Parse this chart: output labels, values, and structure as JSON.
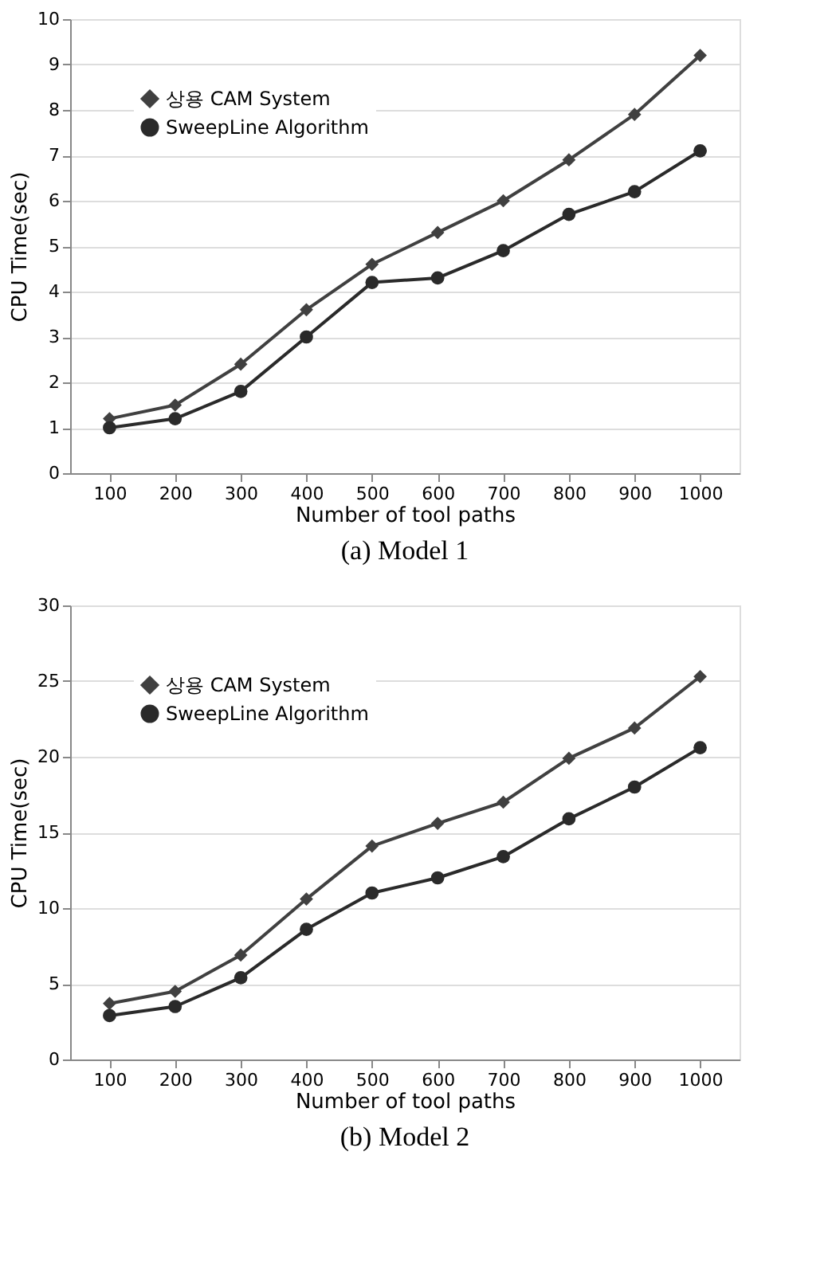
{
  "chart_data": [
    {
      "type": "line",
      "title": "(a) Model 1",
      "xlabel": "Number of tool paths",
      "ylabel": "CPU Time(sec)",
      "categories": [
        "100",
        "200",
        "300",
        "400",
        "500",
        "600",
        "700",
        "800",
        "900",
        "1000"
      ],
      "ylim": [
        0,
        10
      ],
      "yticks": [
        0,
        1,
        2,
        3,
        4,
        5,
        6,
        7,
        8,
        9,
        10
      ],
      "grid": "y",
      "legend": "top left",
      "series": [
        {
          "name": "상용 CAM System",
          "color": "#404040",
          "marker": "diamond",
          "values": [
            1.2,
            1.5,
            2.4,
            3.6,
            4.6,
            5.3,
            6.0,
            6.9,
            7.9,
            9.2
          ]
        },
        {
          "name": "SweepLine Algorithm",
          "color": "#2a2a2a",
          "marker": "circle",
          "values": [
            1.0,
            1.2,
            1.8,
            3.0,
            4.2,
            4.3,
            4.9,
            5.7,
            6.2,
            7.1
          ]
        }
      ]
    },
    {
      "type": "line",
      "title": "(b) Model 2",
      "xlabel": "Number of tool paths",
      "ylabel": "CPU Time(sec)",
      "categories": [
        "100",
        "200",
        "300",
        "400",
        "500",
        "600",
        "700",
        "800",
        "900",
        "1000"
      ],
      "ylim": [
        0,
        30
      ],
      "yticks": [
        0,
        5,
        10,
        15,
        20,
        25,
        30
      ],
      "grid": "y",
      "legend": "top left",
      "series": [
        {
          "name": "상용 CAM System",
          "color": "#404040",
          "marker": "diamond",
          "values": [
            3.7,
            4.5,
            6.9,
            10.6,
            14.1,
            15.6,
            17.0,
            19.9,
            21.9,
            25.3
          ]
        },
        {
          "name": "SweepLine Algorithm",
          "color": "#2a2a2a",
          "marker": "circle",
          "values": [
            2.9,
            3.5,
            5.4,
            8.6,
            11.0,
            12.0,
            13.4,
            15.9,
            18.0,
            20.6
          ]
        }
      ]
    }
  ]
}
